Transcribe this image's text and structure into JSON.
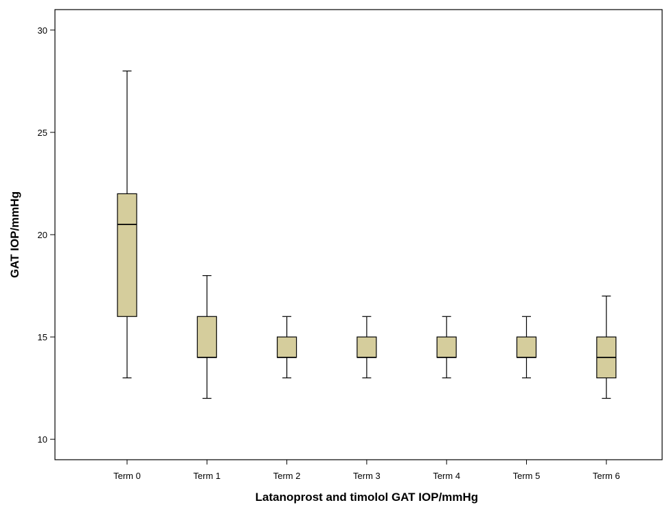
{
  "chart_data": {
    "type": "boxplot",
    "title": "",
    "xlabel": "Latanoprost and timolol GAT IOP/mmHg",
    "ylabel": "GAT IOP/mmHg",
    "categories": [
      "Term 0",
      "Term 1",
      "Term 2",
      "Term 3",
      "Term 4",
      "Term 5",
      "Term 6"
    ],
    "boxes": [
      {
        "category": "Term 0",
        "min": 13,
        "q1": 16,
        "median": 20.5,
        "q3": 22,
        "max": 28
      },
      {
        "category": "Term 1",
        "min": 12,
        "q1": 14,
        "median": 14,
        "q3": 16,
        "max": 18
      },
      {
        "category": "Term 2",
        "min": 13,
        "q1": 14,
        "median": 14,
        "q3": 15,
        "max": 16
      },
      {
        "category": "Term 3",
        "min": 13,
        "q1": 14,
        "median": 14,
        "q3": 15,
        "max": 16
      },
      {
        "category": "Term 4",
        "min": 13,
        "q1": 14,
        "median": 14,
        "q3": 15,
        "max": 16
      },
      {
        "category": "Term 5",
        "min": 13,
        "q1": 14,
        "median": 14,
        "q3": 15,
        "max": 16
      },
      {
        "category": "Term 6",
        "min": 12,
        "q1": 13,
        "median": 14,
        "q3": 15,
        "max": 17
      }
    ],
    "yticks": [
      10,
      15,
      20,
      25,
      30
    ],
    "ylim": [
      9,
      31
    ],
    "grid": false,
    "legend": "none",
    "colors": {
      "box_fill": "#d5cd9c",
      "stroke": "#000000"
    }
  }
}
